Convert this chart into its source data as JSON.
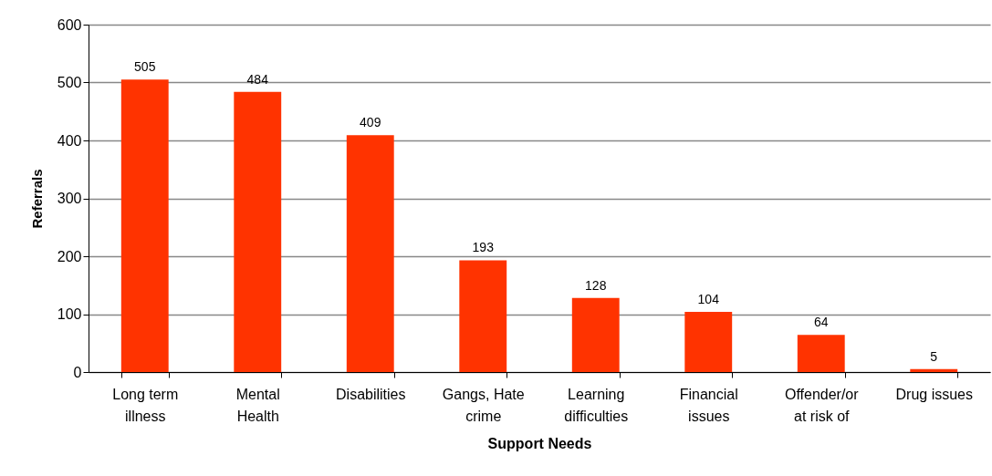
{
  "chart_data": {
    "type": "bar",
    "xlabel": "Support Needs",
    "ylabel": "Referrals",
    "categories": [
      "Long term illness",
      "Mental Health",
      "Disabilities",
      "Gangs, Hate crime",
      "Learning difficulties",
      "Financial issues",
      "Offender/or at risk of",
      "Drug issues"
    ],
    "values": [
      505,
      484,
      409,
      193,
      128,
      104,
      64,
      5
    ],
    "color": "#ff3300",
    "ylim": [
      0,
      600
    ],
    "yticks": [
      0,
      100,
      200,
      300,
      400,
      500,
      600
    ],
    "grid": "y",
    "data_labels": true
  }
}
